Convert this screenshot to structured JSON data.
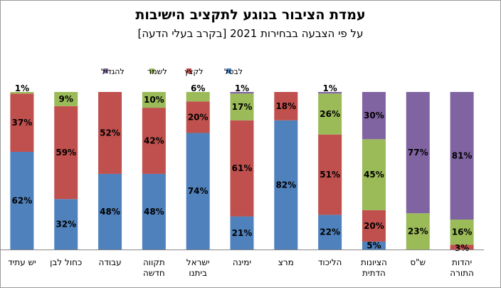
{
  "chart_data": {
    "type": "bar",
    "stacked": true,
    "title": "עמדת הציבור בנוגע לתקציב הישיבות",
    "subtitle": "על פי הצבעה בבחירות 2021 [בקרב בעלי הדעה]",
    "ylim": [
      0,
      100
    ],
    "grid": false,
    "legend_position": "top",
    "categories": [
      "יש עתיד",
      "כחול לבן",
      "עבודה",
      "תקווה חדשה",
      "ישראל ביתנו",
      "ימינה",
      "מרצ",
      "הליכוד",
      "הציונות הדתית",
      "ש\"ס",
      "יהדות התורה"
    ],
    "category_lines": [
      [
        "יש עתיד"
      ],
      [
        "כחול לבן"
      ],
      [
        "עבודה"
      ],
      [
        "תקווה",
        "חדשה"
      ],
      [
        "ישראל",
        "ביתנו"
      ],
      [
        "ימינה"
      ],
      [
        "מרצ"
      ],
      [
        "הליכוד"
      ],
      [
        "הציונות",
        "הדתית"
      ],
      [
        "ש\"ס"
      ],
      [
        "יהדות",
        "התורה"
      ]
    ],
    "series": [
      {
        "name": "לבטל",
        "color": "#4f81bd",
        "values": [
          62,
          32,
          48,
          48,
          74,
          21,
          82,
          22,
          5,
          0,
          0
        ]
      },
      {
        "name": "לקצץ",
        "color": "#c0504d",
        "values": [
          37,
          59,
          52,
          42,
          20,
          61,
          18,
          51,
          20,
          0,
          3
        ]
      },
      {
        "name": "לשמר",
        "color": "#9bbb59",
        "values": [
          1,
          9,
          0,
          10,
          6,
          17,
          0,
          26,
          45,
          23,
          16
        ]
      },
      {
        "name": "להגדיל",
        "color": "#8064a2",
        "values": [
          0,
          0,
          0,
          0,
          0,
          1,
          0,
          1,
          30,
          77,
          81
        ]
      }
    ]
  }
}
